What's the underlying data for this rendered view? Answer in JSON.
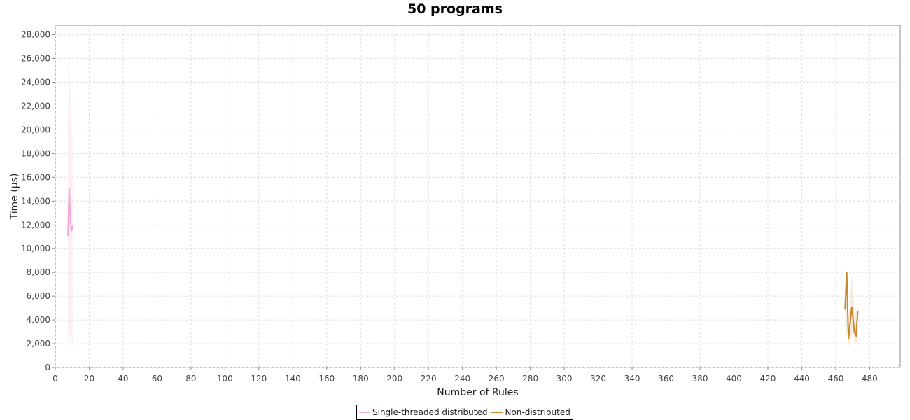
{
  "chart_data": {
    "type": "line",
    "title": "50 programs",
    "xlabel": "Number of Rules",
    "ylabel": "Time (µs)",
    "xlim": [
      0,
      498
    ],
    "ylim": [
      0,
      28800
    ],
    "xticks": [
      0,
      20,
      40,
      60,
      80,
      100,
      120,
      140,
      160,
      180,
      200,
      220,
      240,
      260,
      280,
      300,
      320,
      340,
      360,
      380,
      400,
      420,
      440,
      460,
      480
    ],
    "yticks": [
      0,
      2000,
      4000,
      6000,
      8000,
      10000,
      12000,
      14000,
      16000,
      18000,
      20000,
      22000,
      24000,
      26000,
      28000
    ],
    "grid": true,
    "legend_position": "bottom-center",
    "series": [
      {
        "name": "Single-threaded distributed",
        "color": "#f4a6d2",
        "band_color": "#fbe3ef",
        "points": [
          {
            "x": 7.5,
            "y": 11100,
            "lo": 2000,
            "hi": 21000
          },
          {
            "x": 8.2,
            "y": 15100,
            "lo": 2500,
            "hi": 26000
          },
          {
            "x": 9.0,
            "y": 12100,
            "lo": 3000,
            "hi": 23000
          },
          {
            "x": 9.6,
            "y": 11500,
            "lo": 2000,
            "hi": 20000
          },
          {
            "x": 10.2,
            "y": 11900,
            "lo": 2200,
            "hi": 19000
          }
        ]
      },
      {
        "name": "Non-distributed",
        "color": "#c8862e",
        "band_color": "#efe3cc",
        "points": [
          {
            "x": 465.5,
            "y": 4900,
            "lo": 2500,
            "hi": 7000
          },
          {
            "x": 466.5,
            "y": 8000,
            "lo": 3500,
            "hi": 8000
          },
          {
            "x": 467.5,
            "y": 2400,
            "lo": 1800,
            "hi": 4000
          },
          {
            "x": 468.5,
            "y": 3700,
            "lo": 2200,
            "hi": 5500
          },
          {
            "x": 469.5,
            "y": 5100,
            "lo": 2800,
            "hi": 8000
          },
          {
            "x": 471.0,
            "y": 3000,
            "lo": 2200,
            "hi": 5000
          },
          {
            "x": 472.0,
            "y": 2700,
            "lo": 2000,
            "hi": 4500
          },
          {
            "x": 473.0,
            "y": 4700,
            "lo": 2500,
            "hi": 6000
          }
        ]
      }
    ]
  }
}
